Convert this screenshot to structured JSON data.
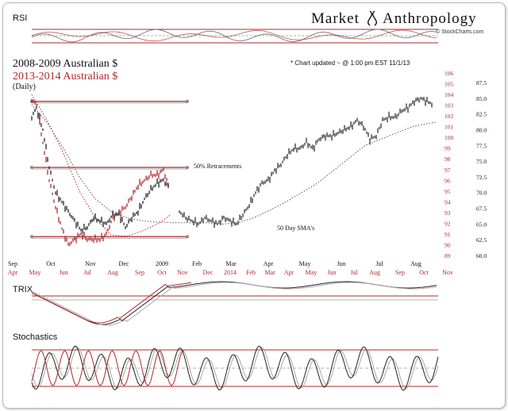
{
  "brand": {
    "word1": "Market",
    "word2": "Anthropology",
    "credit": "© StockCharts.com"
  },
  "panels": {
    "rsi": "RSI",
    "trix": "TRIX",
    "stochastics": "Stochastics"
  },
  "legend": {
    "series1": "2008-2009 Australian $",
    "series2": "2013-2014  Australian $",
    "period": "(Daily)"
  },
  "note": "* Chart updated ~ @ 1:00 pm EST 11/1/13",
  "annotations": {
    "retracement": "50% Retracements",
    "sma": "50 Day SMA's"
  },
  "colors": {
    "black_series": "#222222",
    "red_series": "#b0282a",
    "grid": "#9b9b9b",
    "red_level": "#b0282a"
  },
  "chart_data": {
    "type": "line",
    "title": "",
    "series": [
      {
        "name": "2008-2009 Australian $",
        "axis": "right-black",
        "points": [
          [
            0,
            0.82
          ],
          [
            6,
            0.835
          ],
          [
            14,
            0.8
          ],
          [
            22,
            0.74
          ],
          [
            30,
            0.7
          ],
          [
            38,
            0.685
          ],
          [
            46,
            0.67
          ],
          [
            54,
            0.655
          ],
          [
            62,
            0.64
          ],
          [
            70,
            0.645
          ],
          [
            78,
            0.66
          ],
          [
            86,
            0.655
          ],
          [
            94,
            0.65
          ],
          [
            102,
            0.665
          ],
          [
            110,
            0.665
          ],
          [
            118,
            0.645
          ],
          [
            126,
            0.66
          ],
          [
            134,
            0.67
          ],
          [
            142,
            0.69
          ],
          [
            150,
            0.705
          ],
          [
            158,
            0.715
          ],
          [
            166,
            0.72
          ],
          [
            174,
            0.705
          ]
        ]
      },
      {
        "name": "2013-2014  Australian $",
        "axis": "right-red",
        "points": [
          [
            0,
            103.5
          ],
          [
            6,
            103.0
          ],
          [
            14,
            99.5
          ],
          [
            22,
            96.0
          ],
          [
            30,
            93.5
          ],
          [
            38,
            91.5
          ],
          [
            46,
            90.0
          ],
          [
            54,
            90.5
          ],
          [
            62,
            91.0
          ],
          [
            70,
            90.5
          ],
          [
            78,
            90.5
          ],
          [
            86,
            90.5
          ],
          [
            94,
            91.0
          ],
          [
            102,
            92.5
          ],
          [
            110,
            93.0
          ],
          [
            118,
            93.5
          ],
          [
            126,
            94.5
          ],
          [
            134,
            95.5
          ],
          [
            142,
            96.0
          ],
          [
            150,
            96.5
          ],
          [
            158,
            96.5
          ],
          [
            166,
            97.0
          ],
          [
            174,
            95.0
          ]
        ]
      },
      {
        "name": "",
        "axis": "right-black",
        "points": [
          [
            186,
            0.67
          ],
          [
            194,
            0.66
          ],
          [
            202,
            0.655
          ],
          [
            210,
            0.65
          ],
          [
            218,
            0.66
          ],
          [
            226,
            0.655
          ],
          [
            234,
            0.65
          ],
          [
            242,
            0.66
          ],
          [
            250,
            0.655
          ],
          [
            258,
            0.65
          ],
          [
            266,
            0.665
          ],
          [
            274,
            0.68
          ],
          [
            282,
            0.7
          ],
          [
            290,
            0.715
          ],
          [
            298,
            0.72
          ],
          [
            306,
            0.735
          ],
          [
            314,
            0.745
          ],
          [
            322,
            0.76
          ],
          [
            330,
            0.77
          ],
          [
            338,
            0.77
          ],
          [
            346,
            0.78
          ],
          [
            354,
            0.77
          ],
          [
            362,
            0.785
          ],
          [
            370,
            0.79
          ],
          [
            378,
            0.79
          ],
          [
            386,
            0.795
          ],
          [
            394,
            0.8
          ],
          [
            402,
            0.805
          ],
          [
            410,
            0.815
          ],
          [
            418,
            0.805
          ],
          [
            426,
            0.785
          ],
          [
            434,
            0.79
          ],
          [
            442,
            0.815
          ],
          [
            450,
            0.82
          ],
          [
            458,
            0.82
          ],
          [
            466,
            0.83
          ],
          [
            474,
            0.835
          ],
          [
            482,
            0.845
          ],
          [
            490,
            0.85
          ],
          [
            498,
            0.845
          ],
          [
            506,
            0.84
          ]
        ]
      }
    ],
    "sma_black": [
      [
        0,
        0.84
      ],
      [
        20,
        0.81
      ],
      [
        40,
        0.77
      ],
      [
        60,
        0.725
      ],
      [
        80,
        0.69
      ],
      [
        100,
        0.67
      ],
      [
        120,
        0.66
      ],
      [
        140,
        0.655
      ],
      [
        160,
        0.653
      ],
      [
        180,
        0.652
      ],
      [
        200,
        0.652
      ],
      [
        220,
        0.652
      ],
      [
        240,
        0.65
      ],
      [
        260,
        0.652
      ],
      [
        280,
        0.66
      ],
      [
        300,
        0.672
      ],
      [
        320,
        0.685
      ],
      [
        340,
        0.7
      ],
      [
        360,
        0.715
      ],
      [
        380,
        0.735
      ],
      [
        400,
        0.755
      ],
      [
        420,
        0.775
      ],
      [
        440,
        0.785
      ],
      [
        460,
        0.795
      ],
      [
        480,
        0.805
      ],
      [
        500,
        0.81
      ],
      [
        510,
        0.812
      ]
    ],
    "sma_red": [
      [
        0,
        104.0
      ],
      [
        20,
        101.5
      ],
      [
        40,
        98.5
      ],
      [
        60,
        95.0
      ],
      [
        80,
        92.5
      ],
      [
        100,
        90.9
      ],
      [
        120,
        90.8
      ],
      [
        140,
        91.3
      ],
      [
        160,
        92.0
      ],
      [
        175,
        92.8
      ]
    ],
    "retracement_levels": [
      0.845,
      0.74,
      0.63
    ],
    "right_axis_black": {
      "ticks": [
        "87.5",
        "85.0",
        "82.5",
        "80.0",
        "77.5",
        "75.0",
        "72.5",
        "70.0",
        "67.5",
        "65.0",
        "62.5",
        "60.0"
      ]
    },
    "right_axis_red": {
      "ticks": [
        "106",
        "105",
        "104",
        "103",
        "102",
        "101",
        "100",
        "99",
        "98",
        "97",
        "96",
        "95",
        "94",
        "93",
        "92",
        "91",
        "90",
        "89"
      ]
    },
    "x_axis_black": [
      "Sep",
      "Oct",
      "Nov",
      "Dec",
      "2009",
      "Feb",
      "Mar",
      "Apr",
      "May",
      "Jun",
      "Jul",
      "Aug"
    ],
    "x_axis_red": [
      "Apr",
      "May",
      "Jun",
      "Jul",
      "Aug",
      "Sep",
      "Oct",
      "Nov",
      "Dec",
      "2014",
      "Feb",
      "Mar",
      "Apr",
      "May",
      "Jun",
      "Jul",
      "Aug",
      "Sep",
      "Oct",
      "Nov"
    ]
  }
}
